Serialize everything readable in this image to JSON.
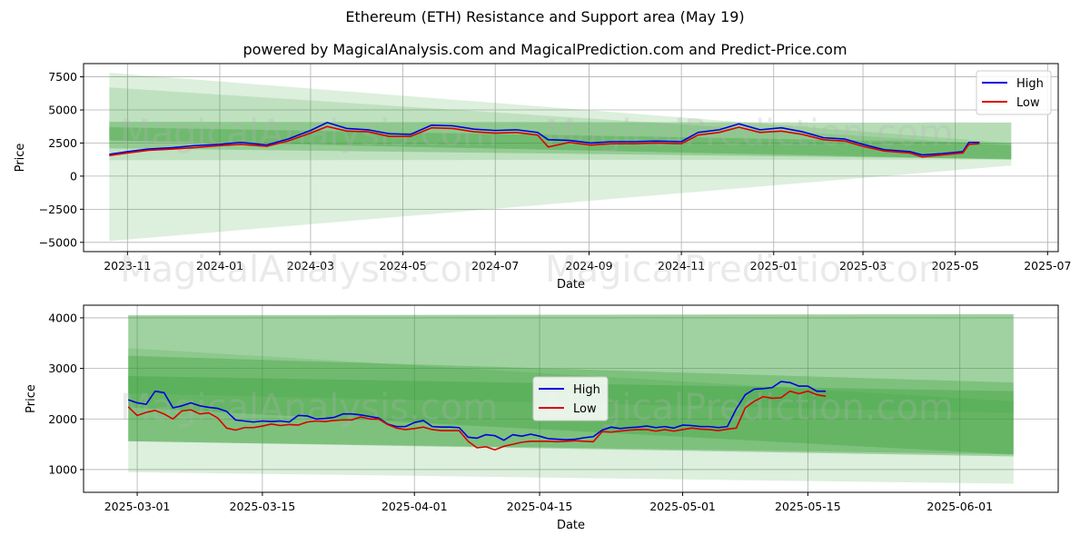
{
  "title": "Ethereum (ETH) Resistance and Support area (May 19)",
  "subtitle": "powered by MagicalAnalysis.com and MagicalPrediction.com and Predict-Price.com",
  "watermarks": [
    "MagicalAnalysis.com",
    "MagicalPrediction.com"
  ],
  "colors": {
    "high": "#0000dd",
    "low": "#dd0000",
    "band_light": "#cfe5cf",
    "band_mid": "#7fc07f",
    "grid": "#b0b0b0"
  },
  "chart_data": [
    {
      "type": "line",
      "xlabel": "Date",
      "ylabel": "Price",
      "legend_placement": "top-right",
      "grid": true,
      "x_range": [
        "2023-10-03",
        "2025-07-08"
      ],
      "ylim": [
        -5700,
        8500
      ],
      "xticks": [
        "2023-11-01",
        "2024-01-01",
        "2024-03-01",
        "2024-05-01",
        "2024-07-01",
        "2024-09-01",
        "2024-11-01",
        "2025-01-01",
        "2025-03-01",
        "2025-05-01",
        "2025-07-01"
      ],
      "xtick_labels": [
        "2023-11",
        "2024-01",
        "2024-03",
        "2024-05",
        "2024-07",
        "2024-09",
        "2024-11",
        "2025-01",
        "2025-03",
        "2025-05",
        "2025-07"
      ],
      "yticks": [
        7500,
        5000,
        2500,
        0,
        -2500,
        -5000
      ],
      "ytick_labels": [
        "7500",
        "5000",
        "2500",
        "0",
        "−2500",
        "−5000"
      ],
      "bands": [
        {
          "opacity": 0.16,
          "x": [
            "2023-10-20",
            "2025-06-07"
          ],
          "upper": [
            7800,
            2500
          ],
          "lower": [
            -4900,
            800
          ]
        },
        {
          "opacity": 0.16,
          "x": [
            "2023-10-20",
            "2025-06-07"
          ],
          "upper": [
            6700,
            2300
          ],
          "lower": [
            1200,
            1250
          ]
        },
        {
          "opacity": 0.35,
          "x": [
            "2023-10-20",
            "2025-06-07"
          ],
          "upper": [
            4100,
            4050
          ],
          "lower": [
            2700,
            1250
          ]
        },
        {
          "opacity": 0.3,
          "x": [
            "2023-10-20",
            "2025-06-07"
          ],
          "upper": [
            3700,
            2500
          ],
          "lower": [
            2100,
            1300
          ]
        }
      ],
      "series": [
        {
          "name": "High",
          "color": "#0000dd",
          "x": [
            "2023-10-20",
            "2023-11-01",
            "2023-11-15",
            "2023-12-01",
            "2023-12-15",
            "2024-01-01",
            "2024-01-15",
            "2024-02-01",
            "2024-02-15",
            "2024-03-01",
            "2024-03-12",
            "2024-03-25",
            "2024-04-08",
            "2024-04-22",
            "2024-05-06",
            "2024-05-20",
            "2024-06-03",
            "2024-06-17",
            "2024-07-01",
            "2024-07-15",
            "2024-07-29",
            "2024-08-05",
            "2024-08-19",
            "2024-09-02",
            "2024-09-16",
            "2024-10-01",
            "2024-10-15",
            "2024-11-01",
            "2024-11-12",
            "2024-11-26",
            "2024-12-09",
            "2024-12-23",
            "2025-01-06",
            "2025-01-20",
            "2025-02-03",
            "2025-02-17",
            "2025-03-01",
            "2025-03-15",
            "2025-04-01",
            "2025-04-09",
            "2025-04-22",
            "2025-05-06",
            "2025-05-10",
            "2025-05-17"
          ],
          "values": [
            1650,
            1850,
            2050,
            2150,
            2300,
            2400,
            2550,
            2350,
            2800,
            3450,
            4050,
            3600,
            3500,
            3200,
            3150,
            3850,
            3800,
            3550,
            3450,
            3500,
            3300,
            2750,
            2700,
            2500,
            2600,
            2600,
            2650,
            2600,
            3300,
            3500,
            3950,
            3500,
            3650,
            3350,
            2900,
            2800,
            2400,
            2000,
            1850,
            1600,
            1700,
            1850,
            2550,
            2550
          ]
        },
        {
          "name": "Low",
          "color": "#dd0000",
          "x": [
            "2023-10-20",
            "2023-11-01",
            "2023-11-15",
            "2023-12-01",
            "2023-12-15",
            "2024-01-01",
            "2024-01-15",
            "2024-02-01",
            "2024-02-15",
            "2024-03-01",
            "2024-03-12",
            "2024-03-25",
            "2024-04-08",
            "2024-04-22",
            "2024-05-06",
            "2024-05-20",
            "2024-06-03",
            "2024-06-17",
            "2024-07-01",
            "2024-07-15",
            "2024-07-29",
            "2024-08-05",
            "2024-08-19",
            "2024-09-02",
            "2024-09-16",
            "2024-10-01",
            "2024-10-15",
            "2024-11-01",
            "2024-11-12",
            "2024-11-26",
            "2024-12-09",
            "2024-12-23",
            "2025-01-06",
            "2025-01-20",
            "2025-02-03",
            "2025-02-17",
            "2025-03-01",
            "2025-03-15",
            "2025-04-01",
            "2025-04-09",
            "2025-04-22",
            "2025-05-06",
            "2025-05-10",
            "2025-05-17"
          ],
          "values": [
            1550,
            1750,
            1950,
            2050,
            2150,
            2300,
            2400,
            2250,
            2650,
            3250,
            3750,
            3400,
            3350,
            3000,
            3000,
            3650,
            3600,
            3350,
            3250,
            3300,
            3100,
            2200,
            2550,
            2350,
            2450,
            2450,
            2500,
            2450,
            3100,
            3300,
            3700,
            3300,
            3400,
            3150,
            2750,
            2650,
            2250,
            1900,
            1750,
            1450,
            1600,
            1750,
            2400,
            2450
          ]
        }
      ]
    },
    {
      "type": "line",
      "xlabel": "Date",
      "ylabel": "Price",
      "legend_placement": "center",
      "grid": true,
      "x_range": [
        "2025-02-23",
        "2025-06-12"
      ],
      "ylim": [
        550,
        4250
      ],
      "xticks": [
        "2025-03-01",
        "2025-03-15",
        "2025-04-01",
        "2025-04-15",
        "2025-05-01",
        "2025-05-15",
        "2025-06-01"
      ],
      "xtick_labels": [
        "2025-03-01",
        "2025-03-15",
        "2025-04-01",
        "2025-04-15",
        "2025-05-01",
        "2025-05-15",
        "2025-06-01"
      ],
      "yticks": [
        4000,
        3000,
        2000,
        1000
      ],
      "ytick_labels": [
        "4000",
        "3000",
        "2000",
        "1000"
      ],
      "bands": [
        {
          "opacity": 0.16,
          "x": [
            "2025-02-28",
            "2025-06-07"
          ],
          "upper": [
            4050,
            4080
          ],
          "lower": [
            950,
            720
          ]
        },
        {
          "opacity": 0.16,
          "x": [
            "2025-02-28",
            "2025-06-07"
          ],
          "upper": [
            3400,
            2350
          ],
          "lower": [
            2500,
            2120
          ]
        },
        {
          "opacity": 0.35,
          "x": [
            "2025-02-28",
            "2025-06-07"
          ],
          "upper": [
            4050,
            4070
          ],
          "lower": [
            1560,
            1260
          ]
        },
        {
          "opacity": 0.3,
          "x": [
            "2025-02-28",
            "2025-06-07"
          ],
          "upper": [
            3250,
            2720
          ],
          "lower": [
            2230,
            1300
          ]
        },
        {
          "opacity": 0.3,
          "x": [
            "2025-02-28",
            "2025-06-07"
          ],
          "upper": [
            2850,
            2550
          ],
          "lower": [
            1560,
            1300
          ]
        }
      ],
      "series": [
        {
          "name": "High",
          "color": "#0000dd",
          "x": [
            "2025-02-28",
            "2025-03-01",
            "2025-03-02",
            "2025-03-03",
            "2025-03-04",
            "2025-03-05",
            "2025-03-06",
            "2025-03-07",
            "2025-03-08",
            "2025-03-09",
            "2025-03-10",
            "2025-03-11",
            "2025-03-12",
            "2025-03-13",
            "2025-03-14",
            "2025-03-15",
            "2025-03-16",
            "2025-03-17",
            "2025-03-18",
            "2025-03-19",
            "2025-03-20",
            "2025-03-21",
            "2025-03-22",
            "2025-03-23",
            "2025-03-24",
            "2025-03-25",
            "2025-03-26",
            "2025-03-27",
            "2025-03-28",
            "2025-03-29",
            "2025-03-30",
            "2025-03-31",
            "2025-04-01",
            "2025-04-02",
            "2025-04-03",
            "2025-04-04",
            "2025-04-05",
            "2025-04-06",
            "2025-04-07",
            "2025-04-08",
            "2025-04-09",
            "2025-04-10",
            "2025-04-11",
            "2025-04-12",
            "2025-04-13",
            "2025-04-14",
            "2025-04-15",
            "2025-04-16",
            "2025-04-17",
            "2025-04-18",
            "2025-04-19",
            "2025-04-20",
            "2025-04-21",
            "2025-04-22",
            "2025-04-23",
            "2025-04-24",
            "2025-04-25",
            "2025-04-26",
            "2025-04-27",
            "2025-04-28",
            "2025-04-29",
            "2025-04-30",
            "2025-05-01",
            "2025-05-02",
            "2025-05-03",
            "2025-05-04",
            "2025-05-05",
            "2025-05-06",
            "2025-05-07",
            "2025-05-08",
            "2025-05-09",
            "2025-05-10",
            "2025-05-11",
            "2025-05-12",
            "2025-05-13",
            "2025-05-14",
            "2025-05-15",
            "2025-05-16",
            "2025-05-17"
          ],
          "values": [
            2380,
            2320,
            2290,
            2550,
            2520,
            2220,
            2260,
            2320,
            2260,
            2230,
            2210,
            2150,
            1980,
            1960,
            1940,
            1960,
            1950,
            1960,
            1940,
            2070,
            2060,
            2000,
            2010,
            2030,
            2100,
            2100,
            2080,
            2050,
            2020,
            1900,
            1850,
            1850,
            1930,
            1970,
            1850,
            1840,
            1840,
            1830,
            1640,
            1620,
            1690,
            1670,
            1580,
            1690,
            1660,
            1700,
            1660,
            1610,
            1600,
            1590,
            1600,
            1630,
            1650,
            1780,
            1840,
            1810,
            1830,
            1840,
            1860,
            1830,
            1850,
            1820,
            1880,
            1870,
            1850,
            1850,
            1830,
            1850,
            2200,
            2480,
            2590,
            2600,
            2620,
            2740,
            2720,
            2650,
            2650,
            2550,
            2550
          ]
        },
        {
          "name": "Low",
          "color": "#dd0000",
          "x": [
            "2025-02-28",
            "2025-03-01",
            "2025-03-02",
            "2025-03-03",
            "2025-03-04",
            "2025-03-05",
            "2025-03-06",
            "2025-03-07",
            "2025-03-08",
            "2025-03-09",
            "2025-03-10",
            "2025-03-11",
            "2025-03-12",
            "2025-03-13",
            "2025-03-14",
            "2025-03-15",
            "2025-03-16",
            "2025-03-17",
            "2025-03-18",
            "2025-03-19",
            "2025-03-20",
            "2025-03-21",
            "2025-03-22",
            "2025-03-23",
            "2025-03-24",
            "2025-03-25",
            "2025-03-26",
            "2025-03-27",
            "2025-03-28",
            "2025-03-29",
            "2025-03-30",
            "2025-03-31",
            "2025-04-01",
            "2025-04-02",
            "2025-04-03",
            "2025-04-04",
            "2025-04-05",
            "2025-04-06",
            "2025-04-07",
            "2025-04-08",
            "2025-04-09",
            "2025-04-10",
            "2025-04-11",
            "2025-04-12",
            "2025-04-13",
            "2025-04-14",
            "2025-04-15",
            "2025-04-16",
            "2025-04-17",
            "2025-04-18",
            "2025-04-19",
            "2025-04-20",
            "2025-04-21",
            "2025-04-22",
            "2025-04-23",
            "2025-04-24",
            "2025-04-25",
            "2025-04-26",
            "2025-04-27",
            "2025-04-28",
            "2025-04-29",
            "2025-04-30",
            "2025-05-01",
            "2025-05-02",
            "2025-05-03",
            "2025-05-04",
            "2025-05-05",
            "2025-05-06",
            "2025-05-07",
            "2025-05-08",
            "2025-05-09",
            "2025-05-10",
            "2025-05-11",
            "2025-05-12",
            "2025-05-13",
            "2025-05-14",
            "2025-05-15",
            "2025-05-16",
            "2025-05-17"
          ],
          "values": [
            2240,
            2070,
            2130,
            2170,
            2100,
            2000,
            2160,
            2180,
            2100,
            2120,
            2020,
            1820,
            1780,
            1830,
            1830,
            1860,
            1900,
            1870,
            1890,
            1880,
            1940,
            1960,
            1950,
            1970,
            1980,
            1980,
            2040,
            2000,
            2000,
            1890,
            1820,
            1790,
            1810,
            1840,
            1790,
            1770,
            1770,
            1770,
            1560,
            1430,
            1450,
            1390,
            1460,
            1500,
            1540,
            1560,
            1560,
            1560,
            1550,
            1560,
            1570,
            1560,
            1550,
            1750,
            1740,
            1760,
            1780,
            1790,
            1790,
            1760,
            1790,
            1760,
            1790,
            1820,
            1800,
            1790,
            1770,
            1800,
            1820,
            2220,
            2350,
            2440,
            2410,
            2420,
            2550,
            2500,
            2550,
            2480,
            2450
          ]
        }
      ]
    }
  ]
}
